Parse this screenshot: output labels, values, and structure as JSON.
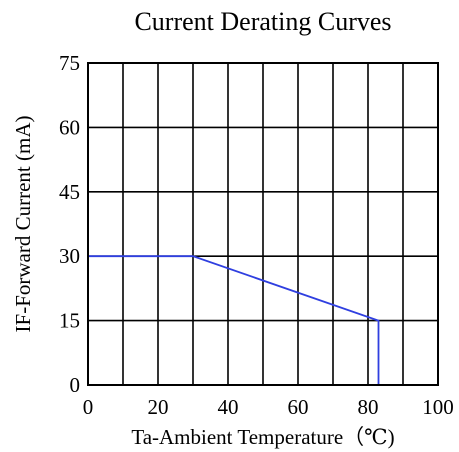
{
  "chart_data": {
    "type": "line",
    "title": "Current Derating Curves",
    "xlabel": "Ta-Ambient Temperature（℃)",
    "ylabel": "IF-Forward Current (mA)",
    "xlim": [
      0,
      100
    ],
    "ylim": [
      0,
      75
    ],
    "x_ticks": [
      0,
      20,
      40,
      60,
      80,
      100
    ],
    "y_ticks": [
      0,
      15,
      30,
      45,
      60,
      75
    ],
    "x_tick_labels": [
      "0",
      "20",
      "40",
      "60",
      "80",
      "100"
    ],
    "y_tick_labels": [
      "0",
      "15",
      "30",
      "45",
      "60",
      "75"
    ],
    "x_grid_step": 10,
    "y_grid_step": 15,
    "grid": true,
    "legend": "none",
    "series": [
      {
        "x": [
          0,
          30,
          83,
          83
        ],
        "y": [
          30,
          30,
          15,
          0
        ],
        "color": "#2f3fe0"
      }
    ]
  }
}
